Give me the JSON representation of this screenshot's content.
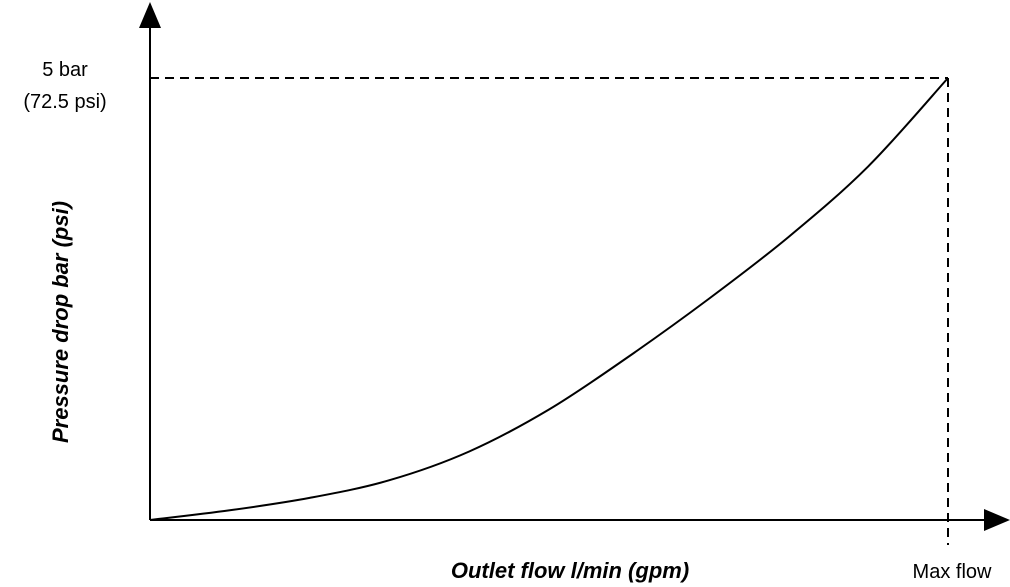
{
  "chart_data": {
    "type": "line",
    "xlabel": "Outlet flow l/min (gpm)",
    "ylabel": "Pressure drop bar (psi)",
    "x_tick_labels": [
      "Max flow"
    ],
    "y_tick_labels": {
      "line1": "5 bar",
      "line2": "(72.5 psi)"
    },
    "series": [
      {
        "values_relative": [
          {
            "x": 0.0,
            "y": 0.0
          },
          {
            "x": 0.1,
            "y": 0.022
          },
          {
            "x": 0.2,
            "y": 0.05
          },
          {
            "x": 0.3,
            "y": 0.09
          },
          {
            "x": 0.4,
            "y": 0.155
          },
          {
            "x": 0.5,
            "y": 0.25
          },
          {
            "x": 0.6,
            "y": 0.37
          },
          {
            "x": 0.7,
            "y": 0.5
          },
          {
            "x": 0.8,
            "y": 0.64
          },
          {
            "x": 0.9,
            "y": 0.8
          },
          {
            "x": 1.0,
            "y": 1.0
          }
        ]
      }
    ],
    "reference_point": {
      "x": 1.0,
      "y": 1.0
    },
    "grid": false,
    "legend": "none"
  }
}
